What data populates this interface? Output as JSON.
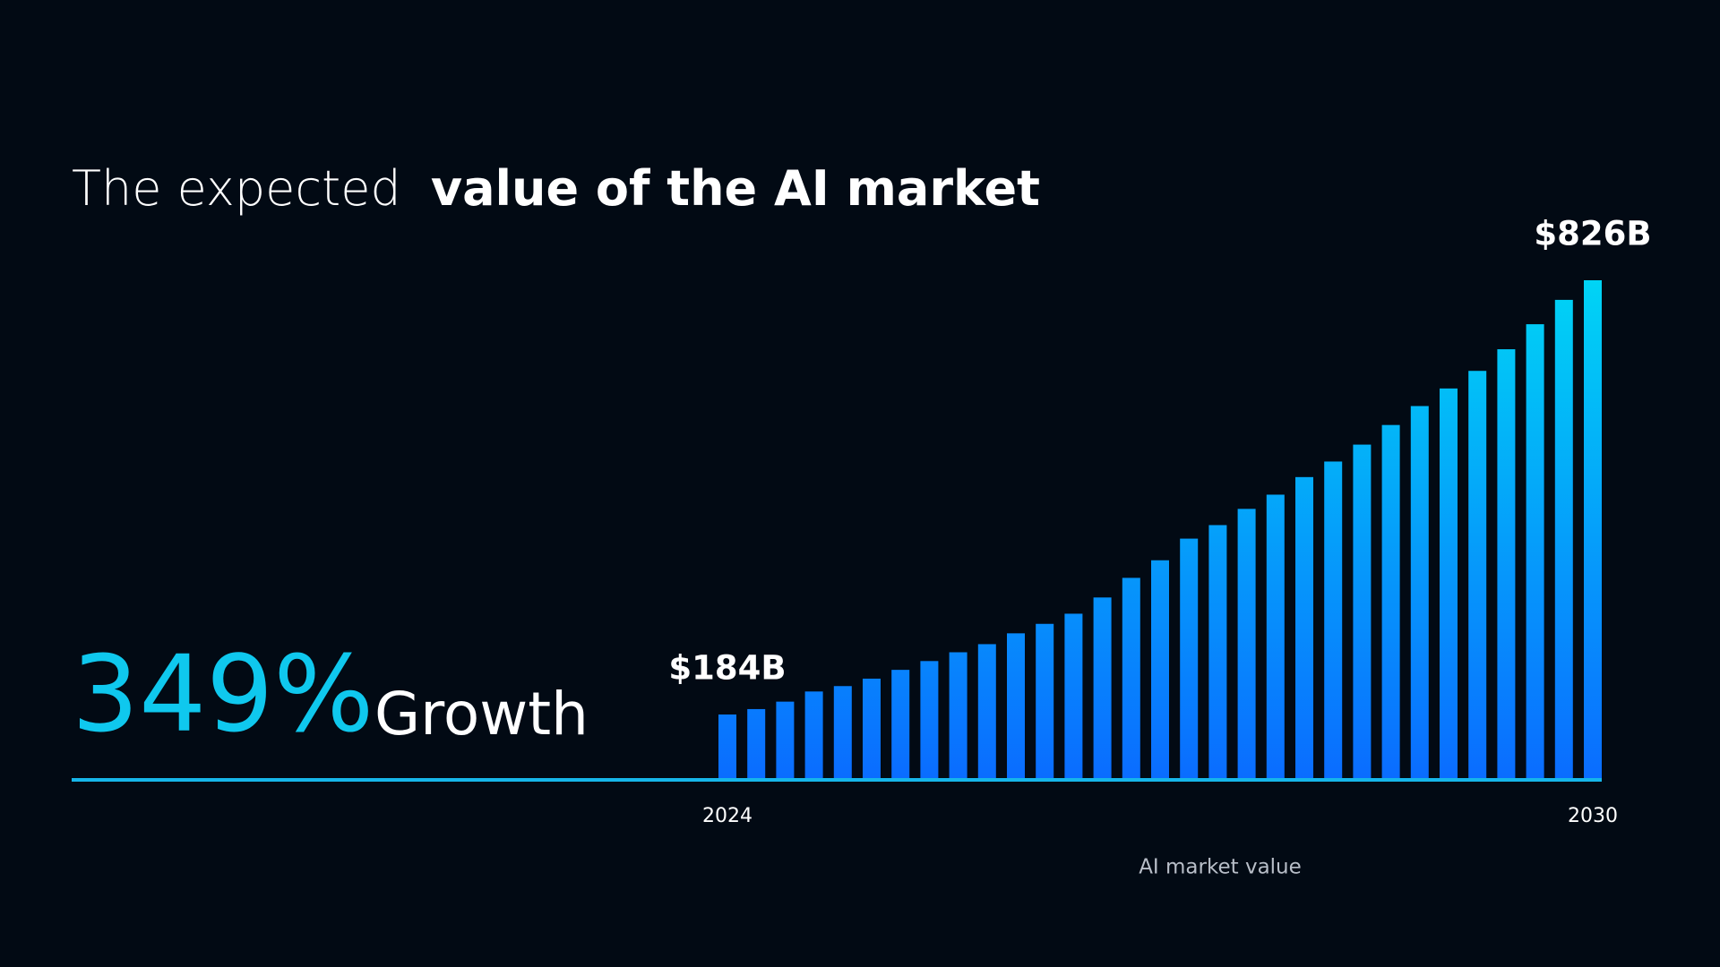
{
  "chart_data": {
    "type": "bar",
    "title_parts": [
      "The expected",
      "value of the AI market"
    ],
    "annotations": [
      "349%",
      "Growth"
    ],
    "x_label": "AI market value",
    "categories": [
      "2024",
      null,
      null,
      null,
      null,
      null,
      null,
      null,
      null,
      null,
      null,
      null,
      null,
      null,
      null,
      null,
      null,
      null,
      null,
      null,
      null,
      null,
      null,
      null,
      null,
      null,
      null,
      null,
      null,
      null,
      "2030"
    ],
    "values": [
      184,
      192,
      203,
      218,
      226,
      237,
      250,
      263,
      276,
      288,
      304,
      318,
      333,
      357,
      386,
      412,
      444,
      464,
      488,
      509,
      535,
      558,
      583,
      612,
      640,
      666,
      692,
      724,
      761,
      797,
      826
    ],
    "value_labels": [
      "$184B",
      null,
      null,
      null,
      null,
      null,
      null,
      null,
      null,
      null,
      null,
      null,
      null,
      null,
      null,
      null,
      null,
      null,
      null,
      null,
      null,
      null,
      null,
      null,
      null,
      null,
      null,
      null,
      null,
      null,
      "$826B"
    ],
    "color": [
      "#00d4f5",
      "#0a6cff"
    ],
    "ylim": [
      90,
      826
    ]
  }
}
